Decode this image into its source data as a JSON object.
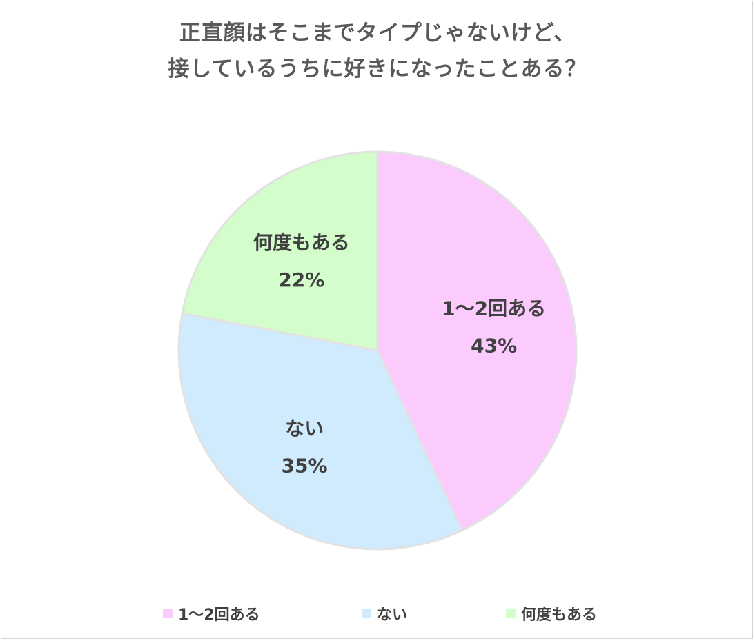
{
  "chart_data": {
    "type": "pie",
    "title_lines": [
      "正直顔はそこまでタイプじゃないけど、",
      "接しているうちに好きになったことある？"
    ],
    "slices": [
      {
        "label": "1〜2回ある",
        "value": 43,
        "value_label": "43%",
        "color": "#fccbfd"
      },
      {
        "label": "ない",
        "value": 35,
        "value_label": "35%",
        "color": "#cfebfd"
      },
      {
        "label": "何度もある",
        "value": 22,
        "value_label": "22%",
        "color": "#d3fdcb"
      }
    ],
    "start_angle_deg": 0,
    "direction": "clockwise",
    "legend_position": "bottom",
    "slice_border_color": "#e2e2e2"
  }
}
